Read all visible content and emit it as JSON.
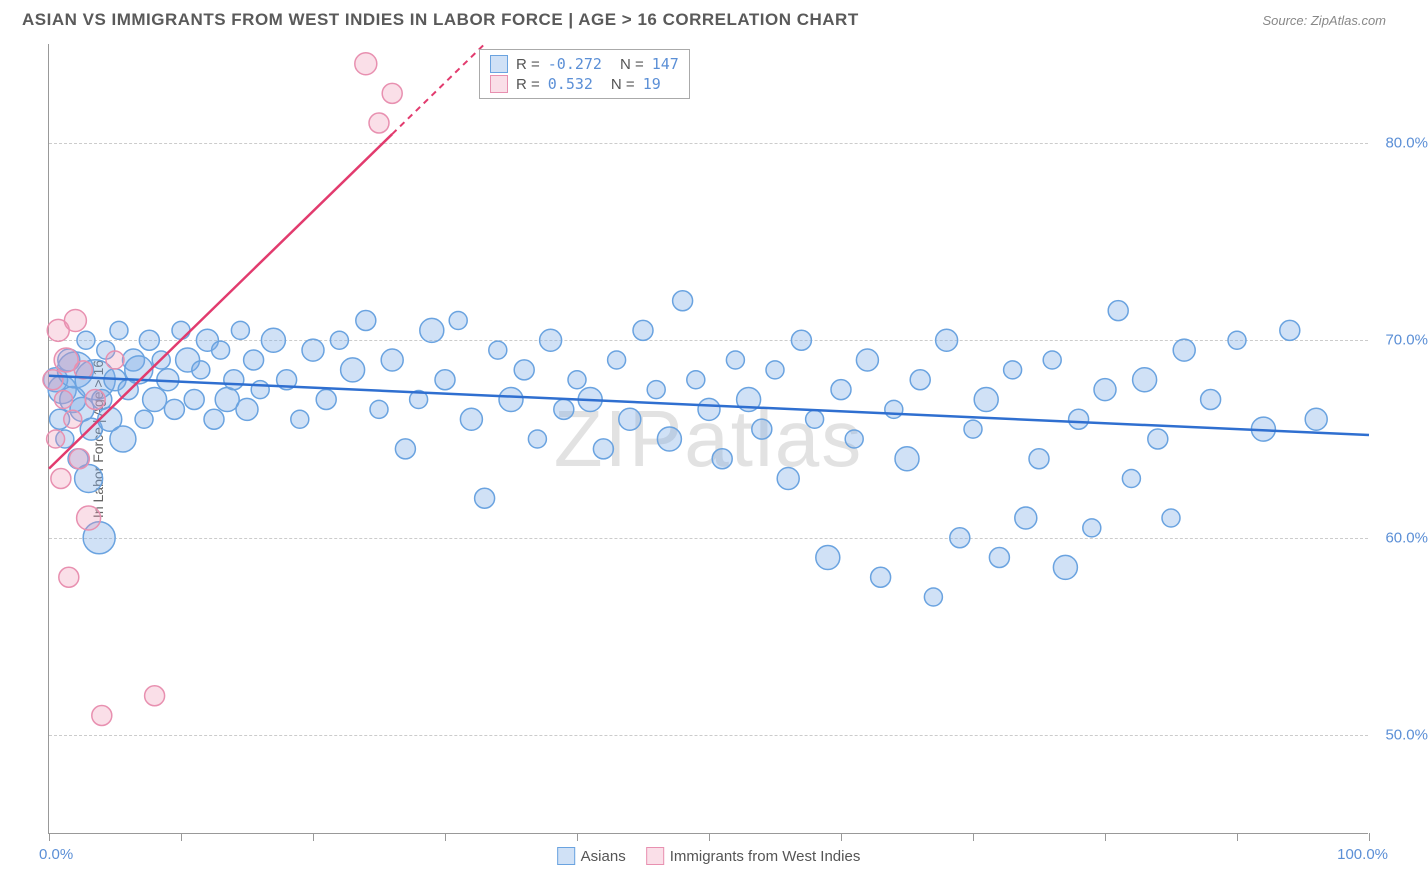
{
  "title": "ASIAN VS IMMIGRANTS FROM WEST INDIES IN LABOR FORCE | AGE > 16 CORRELATION CHART",
  "source": "Source: ZipAtlas.com",
  "watermark": "ZIPatlas",
  "chart": {
    "type": "scatter",
    "yaxis_title": "In Labor Force | Age > 16",
    "xlim": [
      0,
      100
    ],
    "ylim": [
      45,
      85
    ],
    "ytick_values": [
      50,
      60,
      70,
      80
    ],
    "ytick_labels": [
      "50.0%",
      "60.0%",
      "70.0%",
      "80.0%"
    ],
    "ytick_color": "#5b8fd6",
    "xtick_positions": [
      0,
      10,
      20,
      30,
      40,
      50,
      60,
      70,
      80,
      90,
      100
    ],
    "xaxis_min_label": "0.0%",
    "xaxis_max_label": "100.0%",
    "xaxis_label_color": "#5b8fd6",
    "grid_color": "#cccccc",
    "background_color": "#ffffff",
    "series": [
      {
        "name": "Asians",
        "color_fill": "rgba(120,170,230,0.35)",
        "color_stroke": "#6aa3e0",
        "trend_color": "#2f6fd0",
        "trend": {
          "x1": 0,
          "y1": 68.2,
          "x2": 100,
          "y2": 65.2
        },
        "R": "-0.272",
        "N": "147",
        "points": [
          {
            "x": 0.5,
            "y": 68,
            "r": 12
          },
          {
            "x": 0.8,
            "y": 66,
            "r": 10
          },
          {
            "x": 1.0,
            "y": 67.5,
            "r": 14
          },
          {
            "x": 1.2,
            "y": 65,
            "r": 9
          },
          {
            "x": 1.5,
            "y": 69,
            "r": 11
          },
          {
            "x": 1.8,
            "y": 67,
            "r": 13
          },
          {
            "x": 2.0,
            "y": 68.5,
            "r": 18
          },
          {
            "x": 2.2,
            "y": 64,
            "r": 10
          },
          {
            "x": 2.5,
            "y": 66.5,
            "r": 12
          },
          {
            "x": 2.8,
            "y": 70,
            "r": 9
          },
          {
            "x": 3.0,
            "y": 63,
            "r": 14
          },
          {
            "x": 3.2,
            "y": 65.5,
            "r": 11
          },
          {
            "x": 3.5,
            "y": 68,
            "r": 20
          },
          {
            "x": 3.8,
            "y": 60,
            "r": 16
          },
          {
            "x": 4.0,
            "y": 67,
            "r": 10
          },
          {
            "x": 4.3,
            "y": 69.5,
            "r": 9
          },
          {
            "x": 4.6,
            "y": 66,
            "r": 12
          },
          {
            "x": 5.0,
            "y": 68,
            "r": 11
          },
          {
            "x": 5.3,
            "y": 70.5,
            "r": 9
          },
          {
            "x": 5.6,
            "y": 65,
            "r": 13
          },
          {
            "x": 6.0,
            "y": 67.5,
            "r": 10
          },
          {
            "x": 6.4,
            "y": 69,
            "r": 11
          },
          {
            "x": 6.8,
            "y": 68.5,
            "r": 14
          },
          {
            "x": 7.2,
            "y": 66,
            "r": 9
          },
          {
            "x": 7.6,
            "y": 70,
            "r": 10
          },
          {
            "x": 8.0,
            "y": 67,
            "r": 12
          },
          {
            "x": 8.5,
            "y": 69,
            "r": 9
          },
          {
            "x": 9.0,
            "y": 68,
            "r": 11
          },
          {
            "x": 9.5,
            "y": 66.5,
            "r": 10
          },
          {
            "x": 10,
            "y": 70.5,
            "r": 9
          },
          {
            "x": 10.5,
            "y": 69,
            "r": 12
          },
          {
            "x": 11,
            "y": 67,
            "r": 10
          },
          {
            "x": 11.5,
            "y": 68.5,
            "r": 9
          },
          {
            "x": 12,
            "y": 70,
            "r": 11
          },
          {
            "x": 12.5,
            "y": 66,
            "r": 10
          },
          {
            "x": 13,
            "y": 69.5,
            "r": 9
          },
          {
            "x": 13.5,
            "y": 67,
            "r": 12
          },
          {
            "x": 14,
            "y": 68,
            "r": 10
          },
          {
            "x": 14.5,
            "y": 70.5,
            "r": 9
          },
          {
            "x": 15,
            "y": 66.5,
            "r": 11
          },
          {
            "x": 15.5,
            "y": 69,
            "r": 10
          },
          {
            "x": 16,
            "y": 67.5,
            "r": 9
          },
          {
            "x": 17,
            "y": 70,
            "r": 12
          },
          {
            "x": 18,
            "y": 68,
            "r": 10
          },
          {
            "x": 19,
            "y": 66,
            "r": 9
          },
          {
            "x": 20,
            "y": 69.5,
            "r": 11
          },
          {
            "x": 21,
            "y": 67,
            "r": 10
          },
          {
            "x": 22,
            "y": 70,
            "r": 9
          },
          {
            "x": 23,
            "y": 68.5,
            "r": 12
          },
          {
            "x": 24,
            "y": 71,
            "r": 10
          },
          {
            "x": 25,
            "y": 66.5,
            "r": 9
          },
          {
            "x": 26,
            "y": 69,
            "r": 11
          },
          {
            "x": 27,
            "y": 64.5,
            "r": 10
          },
          {
            "x": 28,
            "y": 67,
            "r": 9
          },
          {
            "x": 29,
            "y": 70.5,
            "r": 12
          },
          {
            "x": 30,
            "y": 68,
            "r": 10
          },
          {
            "x": 31,
            "y": 71,
            "r": 9
          },
          {
            "x": 32,
            "y": 66,
            "r": 11
          },
          {
            "x": 33,
            "y": 62,
            "r": 10
          },
          {
            "x": 34,
            "y": 69.5,
            "r": 9
          },
          {
            "x": 35,
            "y": 67,
            "r": 12
          },
          {
            "x": 36,
            "y": 68.5,
            "r": 10
          },
          {
            "x": 37,
            "y": 65,
            "r": 9
          },
          {
            "x": 38,
            "y": 70,
            "r": 11
          },
          {
            "x": 39,
            "y": 66.5,
            "r": 10
          },
          {
            "x": 40,
            "y": 68,
            "r": 9
          },
          {
            "x": 41,
            "y": 67,
            "r": 12
          },
          {
            "x": 42,
            "y": 64.5,
            "r": 10
          },
          {
            "x": 43,
            "y": 69,
            "r": 9
          },
          {
            "x": 44,
            "y": 66,
            "r": 11
          },
          {
            "x": 45,
            "y": 70.5,
            "r": 10
          },
          {
            "x": 46,
            "y": 67.5,
            "r": 9
          },
          {
            "x": 47,
            "y": 65,
            "r": 12
          },
          {
            "x": 48,
            "y": 72,
            "r": 10
          },
          {
            "x": 49,
            "y": 68,
            "r": 9
          },
          {
            "x": 50,
            "y": 66.5,
            "r": 11
          },
          {
            "x": 51,
            "y": 64,
            "r": 10
          },
          {
            "x": 52,
            "y": 69,
            "r": 9
          },
          {
            "x": 53,
            "y": 67,
            "r": 12
          },
          {
            "x": 54,
            "y": 65.5,
            "r": 10
          },
          {
            "x": 55,
            "y": 68.5,
            "r": 9
          },
          {
            "x": 56,
            "y": 63,
            "r": 11
          },
          {
            "x": 57,
            "y": 70,
            "r": 10
          },
          {
            "x": 58,
            "y": 66,
            "r": 9
          },
          {
            "x": 59,
            "y": 59,
            "r": 12
          },
          {
            "x": 60,
            "y": 67.5,
            "r": 10
          },
          {
            "x": 61,
            "y": 65,
            "r": 9
          },
          {
            "x": 62,
            "y": 69,
            "r": 11
          },
          {
            "x": 63,
            "y": 58,
            "r": 10
          },
          {
            "x": 64,
            "y": 66.5,
            "r": 9
          },
          {
            "x": 65,
            "y": 64,
            "r": 12
          },
          {
            "x": 66,
            "y": 68,
            "r": 10
          },
          {
            "x": 67,
            "y": 57,
            "r": 9
          },
          {
            "x": 68,
            "y": 70,
            "r": 11
          },
          {
            "x": 69,
            "y": 60,
            "r": 10
          },
          {
            "x": 70,
            "y": 65.5,
            "r": 9
          },
          {
            "x": 71,
            "y": 67,
            "r": 12
          },
          {
            "x": 72,
            "y": 59,
            "r": 10
          },
          {
            "x": 73,
            "y": 68.5,
            "r": 9
          },
          {
            "x": 74,
            "y": 61,
            "r": 11
          },
          {
            "x": 75,
            "y": 64,
            "r": 10
          },
          {
            "x": 76,
            "y": 69,
            "r": 9
          },
          {
            "x": 77,
            "y": 58.5,
            "r": 12
          },
          {
            "x": 78,
            "y": 66,
            "r": 10
          },
          {
            "x": 79,
            "y": 60.5,
            "r": 9
          },
          {
            "x": 80,
            "y": 67.5,
            "r": 11
          },
          {
            "x": 81,
            "y": 71.5,
            "r": 10
          },
          {
            "x": 82,
            "y": 63,
            "r": 9
          },
          {
            "x": 83,
            "y": 68,
            "r": 12
          },
          {
            "x": 84,
            "y": 65,
            "r": 10
          },
          {
            "x": 85,
            "y": 61,
            "r": 9
          },
          {
            "x": 86,
            "y": 69.5,
            "r": 11
          },
          {
            "x": 88,
            "y": 67,
            "r": 10
          },
          {
            "x": 90,
            "y": 70,
            "r": 9
          },
          {
            "x": 92,
            "y": 65.5,
            "r": 12
          },
          {
            "x": 94,
            "y": 70.5,
            "r": 10
          },
          {
            "x": 96,
            "y": 66,
            "r": 11
          }
        ]
      },
      {
        "name": "Immigrants from West Indies",
        "color_fill": "rgba(240,150,180,0.30)",
        "color_stroke": "#e890b0",
        "trend_color": "#e23b6e",
        "trend": {
          "x1": 0,
          "y1": 63.5,
          "x2": 33,
          "y2": 85
        },
        "trend_dash_after_x": 26,
        "R": "0.532",
        "N": "19",
        "points": [
          {
            "x": 0.3,
            "y": 68,
            "r": 10
          },
          {
            "x": 0.5,
            "y": 65,
            "r": 9
          },
          {
            "x": 0.7,
            "y": 70.5,
            "r": 11
          },
          {
            "x": 0.9,
            "y": 63,
            "r": 10
          },
          {
            "x": 1.1,
            "y": 67,
            "r": 9
          },
          {
            "x": 1.3,
            "y": 69,
            "r": 12
          },
          {
            "x": 1.5,
            "y": 58,
            "r": 10
          },
          {
            "x": 1.8,
            "y": 66,
            "r": 9
          },
          {
            "x": 2.0,
            "y": 71,
            "r": 11
          },
          {
            "x": 2.3,
            "y": 64,
            "r": 10
          },
          {
            "x": 2.6,
            "y": 68.5,
            "r": 9
          },
          {
            "x": 3.0,
            "y": 61,
            "r": 12
          },
          {
            "x": 3.5,
            "y": 67,
            "r": 10
          },
          {
            "x": 4.0,
            "y": 51,
            "r": 10
          },
          {
            "x": 5.0,
            "y": 69,
            "r": 9
          },
          {
            "x": 8.0,
            "y": 52,
            "r": 10
          },
          {
            "x": 24,
            "y": 84,
            "r": 11
          },
          {
            "x": 25,
            "y": 81,
            "r": 10
          },
          {
            "x": 26,
            "y": 82.5,
            "r": 10
          }
        ]
      }
    ]
  },
  "legend": {
    "series1_label": "Asians",
    "series2_label": "Immigrants from West Indies"
  }
}
